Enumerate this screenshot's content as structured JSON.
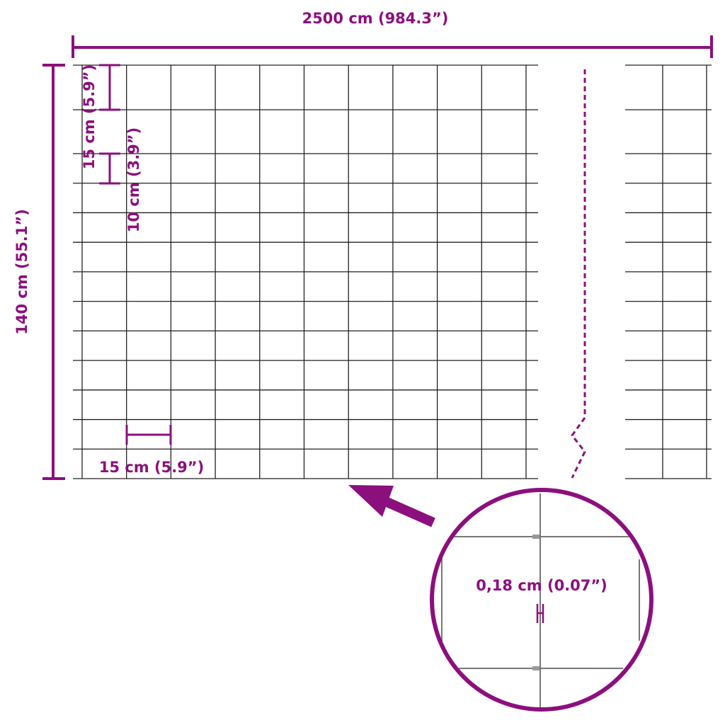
{
  "accent_color": "#8c0f7e",
  "grid_color": "#222222",
  "labels": {
    "total_length": "2500 cm (984.3”)",
    "total_height": "140 cm (55.1”)",
    "top_mesh_height": "15 cm (5.9”)",
    "lower_mesh_height": "10 cm (3.9”)",
    "mesh_width": "15 cm (5.9”)",
    "wire_thickness": "0,18 cm (0.07”)"
  }
}
